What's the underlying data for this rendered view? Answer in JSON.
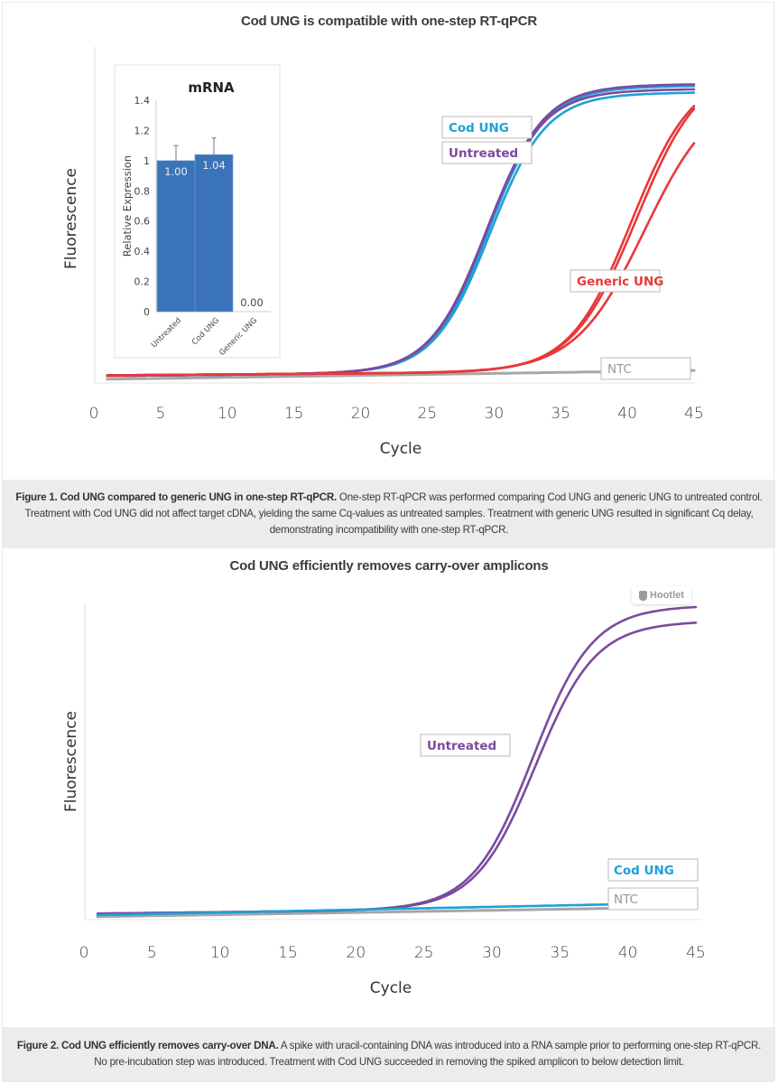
{
  "figure1": {
    "title": "Cod UNG is compatible with one-step RT-qPCR",
    "caption_bold": "Figure 1. Cod UNG compared to generic UNG in one-step RT-qPCR.",
    "caption_text": " One-step RT-qPCR was performed comparing Cod UNG and generic UNG to untreated control. Treatment with Cod UNG did not affect target cDNA, yielding the same Cq-values as untreated samples. Treatment with generic UNG resulted in significant Cq delay, demonstrating incompatibility with one-step RT-qPCR."
  },
  "figure2": {
    "title": "Cod UNG efficiently removes carry-over amplicons",
    "caption_bold": "Figure 2. Cod UNG efficiently removes carry-over DNA.",
    "caption_text": " A spike with uracil-containing DNA was introduced into a RNA sample prior to performing one-step RT-qPCR. No pre-incubation step was introduced. Treatment with Cod UNG succeeded in removing the spiked amplicon to below detection limit."
  },
  "watermark": {
    "label": "Hootlet",
    "icon": "owl-icon"
  },
  "colors": {
    "cod_ung": "#1ea0d8",
    "untreated": "#7b4a9e",
    "generic_ung": "#e8383a",
    "ntc": "#a6a6a6",
    "bar": "#3b73b9"
  },
  "chart_data": [
    {
      "type": "line",
      "title": "Cod UNG is compatible with one-step RT-qPCR",
      "xlabel": "Cycle",
      "ylabel": "Fluorescence",
      "xlim": [
        0,
        45
      ],
      "ylim": [
        0,
        1
      ],
      "xticks": [
        "0",
        "5",
        "10",
        "15",
        "20",
        "25",
        "30",
        "35",
        "40",
        "45"
      ],
      "grid": false,
      "series_model": "sigmoid: baseline + plateau / (1 + exp(-(cycle - cq) / slope)), fluorescence in normalized units",
      "series": [
        {
          "name": "Cod UNG",
          "color_key": "cod_ung",
          "cq": 29.7,
          "plateau": 0.835,
          "slope": 2.1,
          "baseline": 0.01,
          "drift": 0.0004
        },
        {
          "name": "Cod UNG",
          "color_key": "cod_ung",
          "cq": 29.6,
          "plateau": 0.855,
          "slope": 2.1,
          "baseline": 0.01,
          "drift": 0.0004
        },
        {
          "name": "Untreated",
          "color_key": "untreated",
          "cq": 29.4,
          "plateau": 0.845,
          "slope": 2.1,
          "baseline": 0.01,
          "drift": 0.0004
        },
        {
          "name": "Untreated",
          "color_key": "untreated",
          "cq": 29.5,
          "plateau": 0.86,
          "slope": 2.1,
          "baseline": 0.01,
          "drift": 0.0004
        },
        {
          "name": "Generic UNG",
          "color_key": "generic_ung",
          "cq": 40.3,
          "plateau": 0.9,
          "slope": 2.3,
          "baseline": 0.012,
          "drift": 0.0003
        },
        {
          "name": "Generic UNG",
          "color_key": "generic_ung",
          "cq": 40.7,
          "plateau": 0.92,
          "slope": 2.4,
          "baseline": 0.012,
          "drift": 0.0003
        },
        {
          "name": "Generic UNG",
          "color_key": "generic_ung",
          "cq": 41.3,
          "plateau": 0.85,
          "slope": 2.6,
          "baseline": 0.012,
          "drift": 0.0003
        },
        {
          "name": "NTC",
          "color_key": "ntc",
          "cq": null,
          "plateau": 0,
          "slope": 1,
          "baseline": 0.0,
          "drift": 0.0006
        }
      ],
      "legend": [
        {
          "label": "Cod UNG",
          "color_key": "cod_ung"
        },
        {
          "label": "Untreated",
          "color_key": "untreated"
        },
        {
          "label": "Generic UNG",
          "color_key": "generic_ung"
        },
        {
          "label": "NTC",
          "color_key": "ntc"
        }
      ],
      "inset": {
        "type": "bar",
        "title": "mRNA",
        "ylabel": "Relative Expression",
        "ylim": [
          0,
          1.4
        ],
        "yticks": [
          "0",
          "0.2",
          "0.4",
          "0.6",
          "0.8",
          "1",
          "1.2",
          "1.4"
        ],
        "categories": [
          "Untreated",
          "Cod UNG",
          "Generic UNG"
        ],
        "values": [
          1.0,
          1.04,
          0.0
        ],
        "labels": [
          "1.00",
          "1.04",
          "0.00"
        ],
        "error_upper": [
          1.1,
          1.15,
          null
        ]
      }
    },
    {
      "type": "line",
      "title": "Cod UNG efficiently removes carry-over amplicons",
      "xlabel": "Cycle",
      "ylabel": "Fluorescence",
      "xlim": [
        0,
        45
      ],
      "ylim": [
        0,
        1
      ],
      "xticks": [
        "0",
        "5",
        "10",
        "15",
        "20",
        "25",
        "30",
        "35",
        "40",
        "45"
      ],
      "grid": false,
      "series_model": "sigmoid: baseline + plateau / (1 + exp(-(cycle - cq) / slope)), fluorescence in normalized units",
      "series": [
        {
          "name": "Untreated",
          "color_key": "untreated",
          "cq": 33.0,
          "plateau": 0.96,
          "slope": 2.2,
          "baseline": 0.01,
          "drift": 0.0005
        },
        {
          "name": "Untreated",
          "color_key": "untreated",
          "cq": 33.2,
          "plateau": 0.91,
          "slope": 2.2,
          "baseline": 0.01,
          "drift": 0.0005
        },
        {
          "name": "NTC",
          "color_key": "ntc",
          "cq": null,
          "plateau": 0,
          "slope": 1,
          "baseline": 0.0,
          "drift": 0.0007
        },
        {
          "name": "Cod UNG",
          "color_key": "cod_ung",
          "cq": null,
          "plateau": 0,
          "slope": 1,
          "baseline": 0.005,
          "drift": 0.0009
        }
      ],
      "legend": [
        {
          "label": "Untreated",
          "color_key": "untreated"
        },
        {
          "label": "Cod UNG",
          "color_key": "cod_ung"
        },
        {
          "label": "NTC",
          "color_key": "ntc"
        }
      ]
    }
  ]
}
